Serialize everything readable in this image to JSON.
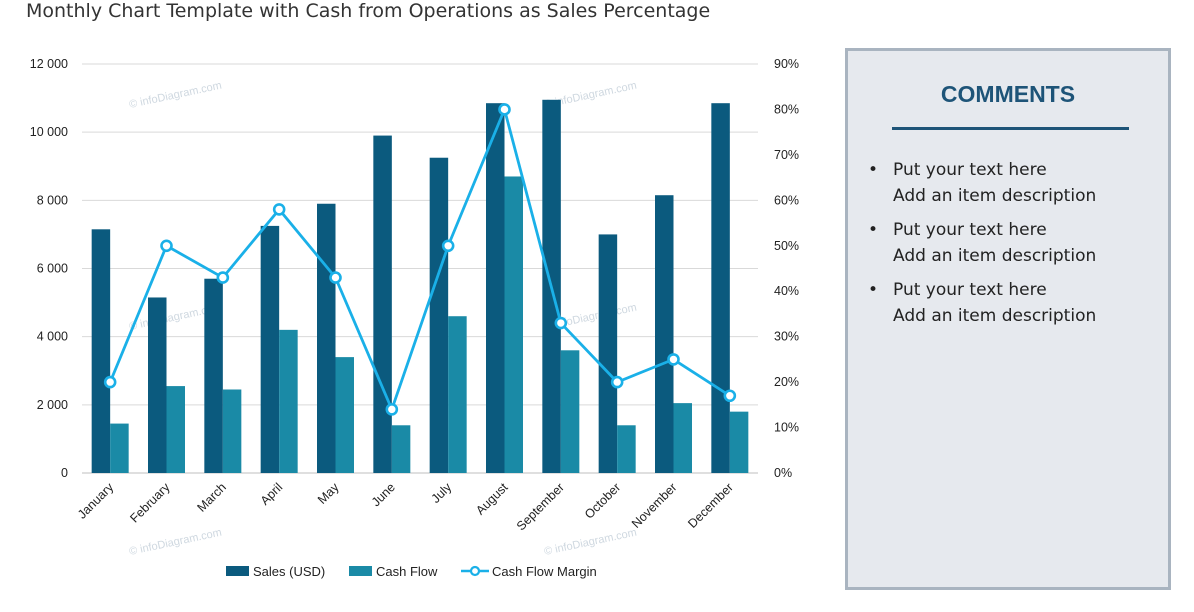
{
  "page": {
    "title": "Monthly Chart Template with Cash from Operations as Sales Percentage"
  },
  "watermark": "© infoDiagram.com",
  "colors": {
    "sales": "#0b5a7e",
    "cash_flow": "#1a8aa6",
    "margin": "#1ab0e8",
    "grid": "#d9d9d9",
    "panel_bg": "#e6e9ee",
    "panel_border": "#a9b4c0",
    "accent": "#1e5478"
  },
  "comments": {
    "title": "COMMENTS",
    "items": [
      {
        "bullet": "•",
        "text": "Put your text here",
        "description": "Add an item description"
      },
      {
        "bullet": "•",
        "text": "Put your text here",
        "description": "Add an item description"
      },
      {
        "bullet": "•",
        "text": "Put your text here",
        "description": "Add an item description"
      }
    ]
  },
  "chart_data": {
    "type": "bar",
    "title": "",
    "xlabel": "",
    "ylabel": "",
    "categories": [
      "January",
      "February",
      "March",
      "April",
      "May",
      "June",
      "July",
      "August",
      "September",
      "October",
      "November",
      "December"
    ],
    "series": [
      {
        "name": "Sales (USD)",
        "type": "bar",
        "axis": "left",
        "values": [
          7150,
          5150,
          5700,
          7250,
          7900,
          9900,
          9250,
          10850,
          10950,
          7000,
          8150,
          10850
        ]
      },
      {
        "name": "Cash Flow",
        "type": "bar",
        "axis": "left",
        "values": [
          1450,
          2550,
          2450,
          4200,
          3400,
          1400,
          4600,
          8700,
          3600,
          1400,
          2050,
          1800
        ]
      },
      {
        "name": "Cash Flow Margin",
        "type": "line",
        "axis": "right",
        "values": [
          20,
          50,
          43,
          58,
          43,
          14,
          50,
          80,
          33,
          20,
          25,
          17
        ]
      }
    ],
    "y_left": {
      "min": 0,
      "max": 12000,
      "ticks": [
        0,
        2000,
        4000,
        6000,
        8000,
        10000,
        12000
      ],
      "tick_labels": [
        "0",
        "2 000",
        "4 000",
        "6 000",
        "8 000",
        "10 000",
        "12 000"
      ]
    },
    "y_right": {
      "min": 0,
      "max": 90,
      "ticks": [
        0,
        10,
        20,
        30,
        40,
        50,
        60,
        70,
        80,
        90
      ],
      "tick_labels": [
        "0%",
        "10%",
        "20%",
        "30%",
        "40%",
        "50%",
        "60%",
        "70%",
        "80%",
        "90%"
      ]
    },
    "grid": true,
    "legend": "bottom"
  }
}
